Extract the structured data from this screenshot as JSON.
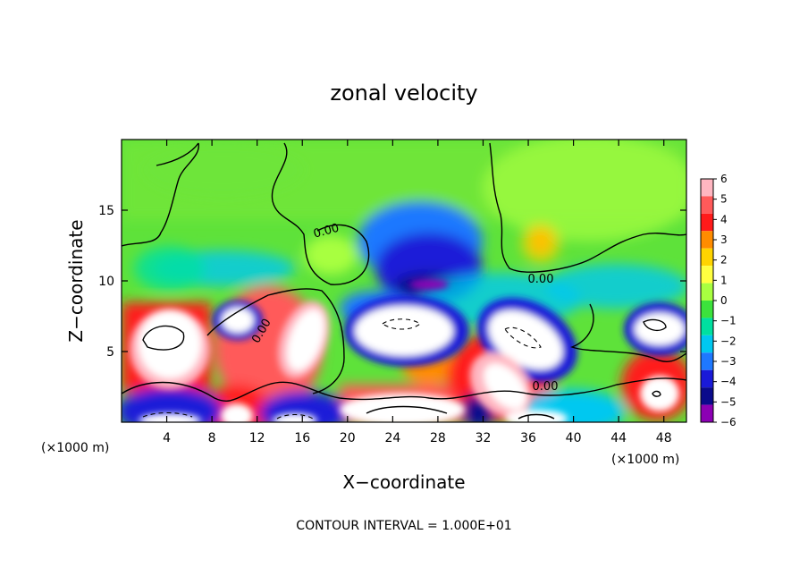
{
  "chart_data": {
    "type": "heatmap",
    "title": "zonal velocity",
    "xlabel": "X−coordinate",
    "ylabel": "Z−coordinate",
    "x_unit_left": "(×1000 m)",
    "x_unit_right": "(×1000 m)",
    "xlim": [
      0,
      50
    ],
    "ylim": [
      0,
      20
    ],
    "x_ticks": [
      4,
      8,
      12,
      16,
      20,
      24,
      28,
      32,
      36,
      40,
      44,
      48
    ],
    "y_ticks": [
      5,
      10,
      15
    ],
    "colorbar": {
      "labels": [
        "6",
        "5",
        "4",
        "3",
        "2",
        "1",
        "0",
        "−1",
        "−2",
        "−3",
        "−4",
        "−5",
        "−6"
      ],
      "values": [
        6,
        5,
        4,
        3,
        2,
        1,
        0,
        -1,
        -2,
        -3,
        -4,
        -5,
        -6
      ],
      "colors": [
        "#ffb6c1",
        "#ff5a5a",
        "#ff1a1a",
        "#ff8c00",
        "#ffd400",
        "#ffff40",
        "#a8ff40",
        "#3ce23c",
        "#00e0a0",
        "#00c8f0",
        "#1e78ff",
        "#1a1ad8",
        "#0a0a8c",
        "#8c00b4"
      ]
    },
    "contour_labels": [
      "0.00",
      "0.00",
      "0.00",
      "0.00"
    ],
    "contour_interval_text": "CONTOUR INTERVAL = 1.000E+01"
  }
}
